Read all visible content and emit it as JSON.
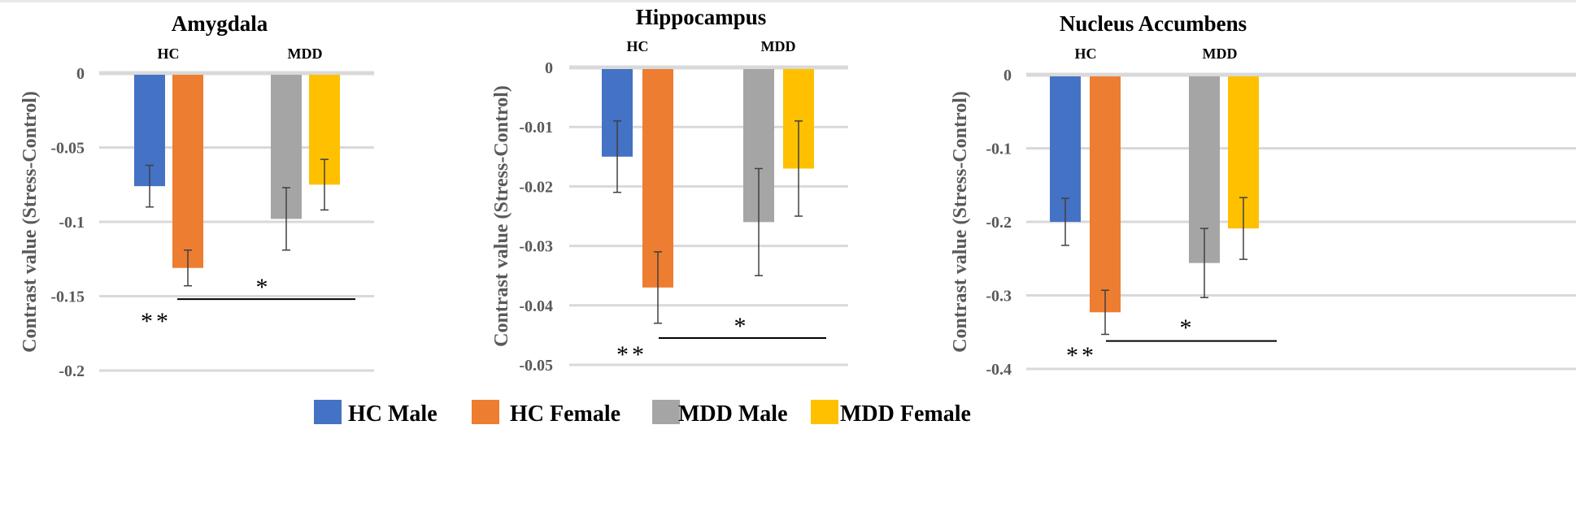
{
  "colors": {
    "hc_male": "#4472C4",
    "hc_female": "#ED7D31",
    "mdd_male": "#A5A5A5",
    "mdd_female": "#FFC000",
    "grid": "#D9D9D9",
    "text_axis": "#595959",
    "text_main": "#000000",
    "error_bar": "#404040"
  },
  "legend": [
    {
      "label": "HC Male",
      "color_key": "hc_male"
    },
    {
      "label": "HC Female",
      "color_key": "hc_female"
    },
    {
      "label": "MDD Male",
      "color_key": "mdd_male"
    },
    {
      "label": "MDD Female",
      "color_key": "mdd_female"
    }
  ],
  "chart_data": [
    {
      "type": "bar",
      "title": "Amygdala",
      "ylabel": "Contrast value (Stress-Control)",
      "groups": [
        "HC",
        "MDD"
      ],
      "series_names": [
        "HC Male",
        "HC Female",
        "MDD Male",
        "MDD Female"
      ],
      "values": [
        -0.076,
        -0.131,
        -0.098,
        -0.075
      ],
      "errors": [
        0.014,
        0.012,
        0.021,
        0.017
      ],
      "yticks": [
        "0",
        "-0.05",
        "-0.1",
        "-0.15",
        "-0.2"
      ],
      "ytick_values": [
        0,
        -0.05,
        -0.1,
        -0.15,
        -0.2
      ],
      "ylim": [
        -0.2,
        0
      ],
      "significance": [
        {
          "label": "**",
          "type": "main-effect"
        },
        {
          "label": "*",
          "type": "interaction",
          "y": -0.152
        }
      ]
    },
    {
      "type": "bar",
      "title": "Hippocampus",
      "ylabel": "Contrast value (Stress-Control)",
      "groups": [
        "HC",
        "MDD"
      ],
      "series_names": [
        "HC Male",
        "HC Female",
        "MDD Male",
        "MDD Female"
      ],
      "values": [
        -0.015,
        -0.037,
        -0.026,
        -0.017
      ],
      "errors": [
        0.006,
        0.006,
        0.009,
        0.008
      ],
      "yticks": [
        "0",
        "-0.01",
        "-0.02",
        "-0.03",
        "-0.04",
        "-0.05"
      ],
      "ytick_values": [
        0,
        -0.01,
        -0.02,
        -0.03,
        -0.04,
        -0.05
      ],
      "ylim": [
        -0.05,
        0
      ],
      "significance": [
        {
          "label": "**",
          "type": "main-effect"
        },
        {
          "label": "*",
          "type": "interaction",
          "y": -0.0455
        }
      ]
    },
    {
      "type": "bar",
      "title": "Nucleus Accumbens",
      "ylabel": "Contrast value (Stress-Control)",
      "groups": [
        "HC",
        "MDD"
      ],
      "series_names": [
        "HC Male",
        "HC Female",
        "MDD Male",
        "MDD Female"
      ],
      "values": [
        -0.2,
        -0.323,
        -0.256,
        -0.209
      ],
      "errors": [
        0.032,
        0.03,
        0.047,
        0.042
      ],
      "yticks": [
        "0",
        "-0.1",
        "-0.2",
        "-0.3",
        "-0.4"
      ],
      "ytick_values": [
        0,
        -0.1,
        -0.2,
        -0.3,
        -0.4
      ],
      "ylim": [
        -0.4,
        0
      ],
      "significance": [
        {
          "label": "**",
          "type": "main-effect"
        },
        {
          "label": "*",
          "type": "interaction",
          "y": -0.362
        }
      ]
    }
  ]
}
